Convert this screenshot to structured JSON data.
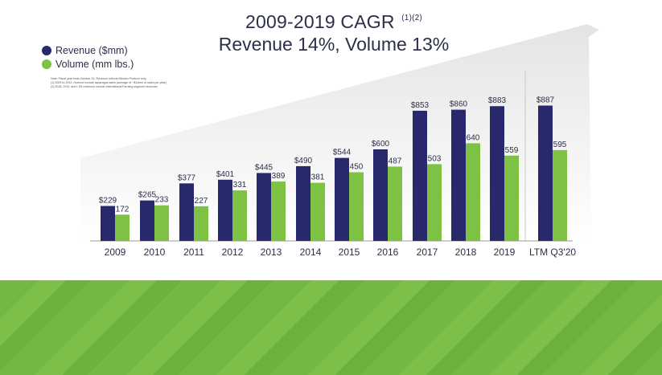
{
  "title": {
    "line1": "2009-2019 CAGR",
    "footnote_marks": "(1)(2)",
    "line2": "Revenue 14%, Volume 13%"
  },
  "legend": {
    "revenue_label": "Revenue ($mm)",
    "volume_label": "Volume (mm lbs.)"
  },
  "notes": {
    "line1": "Note: Fiscal year ends October 31. Revenue reflects Mission Produce only.",
    "line2": "(1) 2009 to 2012, revenue include asparagus sales (average of ~$14mm of sales per year)",
    "line3": "(2) 2018, 2019, and LTM revenues include International Farming segment revenues"
  },
  "colors": {
    "revenue": "#27296b",
    "volume": "#7dc243",
    "text": "#2b2f4a",
    "background_band": "#72b843"
  },
  "chart_data": {
    "type": "bar",
    "categories": [
      "2009",
      "2010",
      "2011",
      "2012",
      "2013",
      "2014",
      "2015",
      "2016",
      "2017",
      "2018",
      "2019",
      "LTM Q3'20"
    ],
    "series": [
      {
        "name": "Revenue ($mm)",
        "values": [
          229,
          265,
          377,
          401,
          445,
          490,
          544,
          600,
          853,
          860,
          883,
          887
        ],
        "labels": [
          "$229",
          "$265",
          "$377",
          "$401",
          "$445",
          "$490",
          "$544",
          "$600",
          "$853",
          "$860",
          "$883",
          "$887"
        ]
      },
      {
        "name": "Volume (mm lbs.)",
        "values": [
          172,
          233,
          227,
          331,
          389,
          381,
          450,
          487,
          503,
          640,
          559,
          595
        ],
        "labels": [
          "172",
          "233",
          "227",
          "331",
          "389",
          "381",
          "450",
          "487",
          "503",
          "640",
          "559",
          "595"
        ]
      }
    ],
    "ylim": [
      0,
      1000
    ],
    "grid": false,
    "legend_position": "top-left",
    "xlabel": "",
    "ylabel": ""
  }
}
